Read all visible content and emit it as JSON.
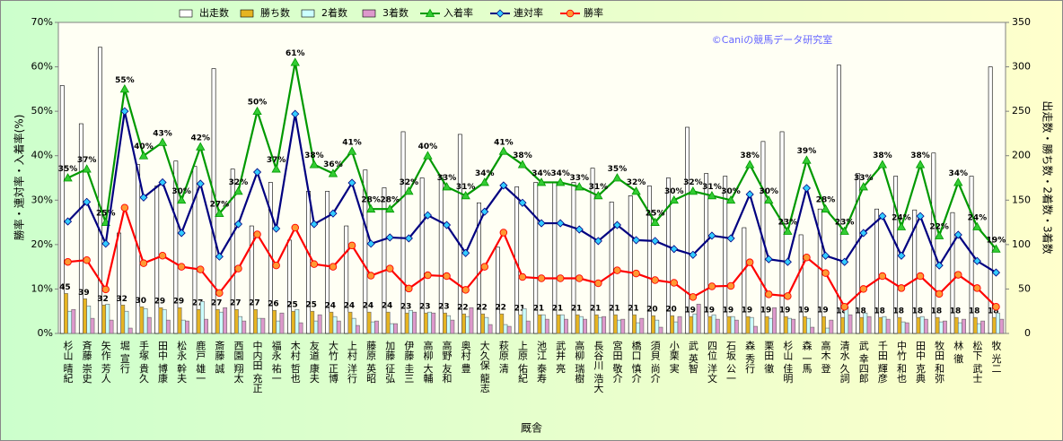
{
  "chart_data": {
    "type": "combo",
    "x_label": "厩舎",
    "y_label": "勝率・連対率・入着率(%)",
    "y2_label": "出走数・勝ち数・2着数・3着数",
    "annotation": "©Caniの競馬データ研究室",
    "grid": false,
    "legend": "top",
    "categories": [
      "杉山 晴紀",
      "斉藤 崇史",
      "矢作 芳人",
      "堀 宣行",
      "手塚 貴久",
      "田中 博康",
      "松永 幹夫",
      "鹿戸 雄一",
      "斎藤 誠",
      "西園 翔太",
      "中内田 充正",
      "福永 祐一",
      "木村 哲也",
      "友道 康夫",
      "大竹 正博",
      "上村 洋行",
      "藤原 英昭",
      "加藤 征弘",
      "伊藤 圭三",
      "高柳 大輔",
      "高野 友和",
      "奥村 豊",
      "大久保 龍志",
      "萩原 清",
      "上原 佑紀",
      "池江 泰寿",
      "武井 亮",
      "高柳 瑞樹",
      "長谷川 浩大",
      "宮田 敬介",
      "橋口 慎介",
      "須貝 尚介",
      "小栗 実",
      "武 英智",
      "四位 洋文",
      "石坂 公一",
      "森 秀行",
      "栗田 徹",
      "杉山 佳明",
      "森 一馬",
      "高木 登",
      "清水 久詞",
      "武 幸四郎",
      "千田 輝彦",
      "中竹 和也",
      "田中 克典",
      "牧田 和弥",
      "林 徹",
      "松下 武士",
      "牧 光二"
    ],
    "ylim": [
      0,
      70
    ],
    "yticks": [
      {
        "value": 0,
        "label": "0%"
      },
      {
        "value": 10,
        "label": "10%"
      },
      {
        "value": 20,
        "label": "20%"
      },
      {
        "value": 30,
        "label": "30%"
      },
      {
        "value": 40,
        "label": "40%"
      },
      {
        "value": 50,
        "label": "50%"
      },
      {
        "value": 60,
        "label": "60%"
      },
      {
        "value": 70,
        "label": "70%"
      }
    ],
    "y2lim": [
      0,
      350
    ],
    "y2ticks": [
      0,
      50,
      100,
      150,
      200,
      250,
      300,
      350
    ],
    "series": [
      {
        "name": "出走数",
        "type": "bar",
        "axis": "y2",
        "color": "#ffffff",
        "values": [
          279,
          236,
          322,
          113,
          190,
          166,
          194,
          188,
          298,
          185,
          121,
          170,
          105,
          160,
          160,
          121,
          184,
          164,
          227,
          175,
          178,
          224,
          147,
          97,
          165,
          170,
          170,
          170,
          186,
          148,
          155,
          166,
          175,
          232,
          180,
          177,
          119,
          216,
          227,
          111,
          140,
          302,
          180,
          140,
          177,
          139,
          203,
          136,
          177,
          300
        ]
      },
      {
        "name": "勝ち数",
        "type": "bar",
        "axis": "y2",
        "color": "#e6b422",
        "values": [
          45,
          39,
          32,
          32,
          30,
          29,
          29,
          27,
          27,
          27,
          27,
          26,
          25,
          25,
          24,
          24,
          24,
          24,
          23,
          23,
          23,
          22,
          22,
          22,
          21,
          21,
          21,
          21,
          21,
          21,
          21,
          20,
          20,
          19,
          19,
          19,
          19,
          19,
          19,
          19,
          19,
          18,
          18,
          18,
          18,
          18,
          18,
          18,
          18,
          18
        ]
      },
      {
        "name": "2着数",
        "type": "bar",
        "axis": "y2",
        "color": "#ccffff",
        "values": [
          25,
          31,
          33,
          25,
          28,
          27,
          15,
          36,
          24,
          19,
          17,
          14,
          27,
          14,
          19,
          17,
          13,
          11,
          26,
          24,
          20,
          19,
          18,
          10,
          28,
          21,
          21,
          19,
          18,
          15,
          12,
          15,
          13,
          22,
          21,
          19,
          18,
          17,
          17,
          17,
          6,
          30,
          23,
          19,
          13,
          19,
          13,
          12,
          11,
          23
        ]
      },
      {
        "name": "3着数",
        "type": "bar",
        "axis": "y2",
        "color": "#dd99cc",
        "values": [
          27,
          17,
          15,
          6,
          18,
          15,
          14,
          16,
          29,
          14,
          17,
          23,
          12,
          21,
          14,
          9,
          14,
          11,
          24,
          23,
          15,
          29,
          10,
          8,
          14,
          16,
          16,
          16,
          19,
          16,
          17,
          7,
          19,
          33,
          16,
          15,
          8,
          29,
          16,
          7,
          15,
          21,
          19,
          16,
          12,
          16,
          14,
          16,
          14,
          16
        ]
      },
      {
        "name": "入着率",
        "type": "line",
        "color": "#009900",
        "marker": "triangle",
        "marker_color": "#33cc33",
        "values": [
          35,
          37,
          25,
          55,
          40,
          43,
          30,
          42,
          27,
          32,
          50,
          37,
          61,
          38,
          36,
          41,
          28,
          28,
          32,
          40,
          33,
          31,
          34,
          41,
          38,
          34,
          34,
          33,
          31,
          35,
          32,
          25,
          30,
          32,
          31,
          30,
          38,
          30,
          23,
          39,
          28,
          23,
          33,
          38,
          24,
          38,
          22,
          34,
          24,
          19
        ],
        "value_labels": [
          "35%",
          "37%",
          "25%",
          "55%",
          "40%",
          "43%",
          "30%",
          "42%",
          "27%",
          "32%",
          "50%",
          "37%",
          "61%",
          "38%",
          "36%",
          "41%",
          "28%",
          "28%",
          "32%",
          "40%",
          "33%",
          "31%",
          "34%",
          "41%",
          "38%",
          "34%",
          "34%",
          "33%",
          "31%",
          "35%",
          "32%",
          "25%",
          "30%",
          "32%",
          "31%",
          "30%",
          "38%",
          "30%",
          "23%",
          "39%",
          "28%",
          "23%",
          "33%",
          "38%",
          "24%",
          "38%",
          "22%",
          "34%",
          "24%",
          "19%"
        ]
      },
      {
        "name": "連対率",
        "type": "line",
        "color": "#000080",
        "marker": "diamond",
        "marker_color": "#33ccff",
        "values": [
          25.2,
          29.6,
          20.2,
          50,
          30.6,
          34,
          22.6,
          33.7,
          17.3,
          24.6,
          36.3,
          23.6,
          49.4,
          24.6,
          27,
          33.9,
          20.2,
          21.6,
          21.4,
          26.6,
          24.4,
          18.1,
          27.4,
          33.3,
          29.4,
          24.8,
          24.8,
          23.4,
          20.8,
          24.4,
          21,
          20.8,
          19,
          17.7,
          22,
          21.4,
          31.3,
          16.7,
          16.1,
          32.7,
          17.5,
          16.1,
          22.6,
          26.4,
          17.5,
          26.4,
          15.3,
          22.2,
          16.3,
          13.7
        ]
      },
      {
        "name": "勝率",
        "type": "line",
        "color": "#ff0000",
        "marker": "circle",
        "marker_color": "#ff9933",
        "values": [
          16.1,
          16.5,
          9.9,
          28.3,
          15.8,
          17.5,
          15,
          14.4,
          9.1,
          14.6,
          22.3,
          15.3,
          23.8,
          15.6,
          15,
          19.8,
          13,
          14.6,
          10.1,
          13.1,
          12.9,
          9.8,
          15,
          22.7,
          12.7,
          12.4,
          12.4,
          12.4,
          11.3,
          14.2,
          13.5,
          12,
          11.4,
          8.2,
          10.6,
          10.7,
          16,
          8.8,
          8.4,
          17.1,
          13.6,
          6,
          10,
          12.9,
          10.2,
          12.9,
          8.9,
          13.2,
          10.2,
          6
        ]
      }
    ]
  }
}
